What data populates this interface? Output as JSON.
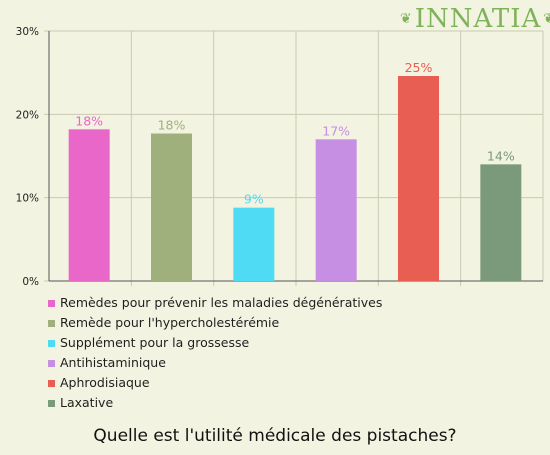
{
  "brand": "INNATIA",
  "caption": "Quelle est l'utilité médicale des pistaches?",
  "chart_data": {
    "type": "bar",
    "title": "Quelle est l'utilité médicale des pistaches?",
    "yaxis": {
      "min": 0,
      "max": 30,
      "ticks": [
        "0%",
        "10%",
        "20%",
        "30%"
      ]
    },
    "grid": true,
    "legend_position": "bottom-left",
    "series": [
      {
        "name": "Remèdes pour prévenir les maladies dégénératives",
        "value": 18.2,
        "label": "18%",
        "color": "#e967c9"
      },
      {
        "name": "Remède pour l'hypercholestérémie",
        "value": 17.7,
        "label": "18%",
        "color": "#a0b07d"
      },
      {
        "name": "Supplément pour la grossesse",
        "value": 8.8,
        "label": "9%",
        "color": "#4fdbf4"
      },
      {
        "name": "Antihistaminique",
        "value": 17.0,
        "label": "17%",
        "color": "#c68fe3"
      },
      {
        "name": "Aphrodisiaque",
        "value": 24.6,
        "label": "25%",
        "color": "#e95e52"
      },
      {
        "name": "Laxative",
        "value": 14.0,
        "label": "14%",
        "color": "#7b9a7b"
      }
    ]
  }
}
